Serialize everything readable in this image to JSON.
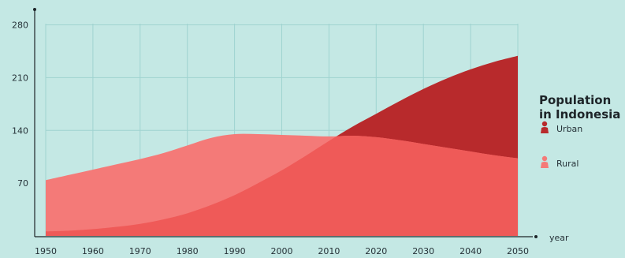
{
  "chart_data": {
    "type": "area",
    "x": [
      1950,
      1955,
      1960,
      1965,
      1970,
      1975,
      1980,
      1985,
      1990,
      1995,
      2000,
      2005,
      2010,
      2015,
      2020,
      2025,
      2030,
      2035,
      2040,
      2045,
      2050
    ],
    "series": [
      {
        "name": "Rural",
        "color": "#f47a78",
        "values": [
          74,
          81,
          88,
          95,
          102,
          110,
          120,
          130,
          135,
          135,
          134,
          133,
          132,
          133,
          131,
          127,
          122,
          117,
          112,
          107,
          103
        ]
      },
      {
        "name": "Urban",
        "color": "#b82a2c",
        "values": [
          6,
          7,
          9,
          12,
          16,
          22,
          30,
          41,
          54,
          70,
          87,
          106,
          126,
          145,
          162,
          179,
          195,
          209,
          221,
          231,
          239
        ]
      }
    ],
    "xlim": [
      1950,
      2050
    ],
    "ylim": [
      0,
      290
    ],
    "x_ticks": [
      "1950",
      "1960",
      "1970",
      "1980",
      "1990",
      "2000",
      "2010",
      "2020",
      "2030",
      "2040",
      "2050"
    ],
    "y_ticks": [
      "280",
      "210",
      "140",
      "70"
    ],
    "xlabel": "year",
    "ylabel": "",
    "grid": true,
    "legend": {
      "title_line1": "Population",
      "title_line2": "in Indonesia",
      "position": "right"
    },
    "overlap_color": "#ef5a58",
    "grid_color": "#9fd3d0"
  }
}
